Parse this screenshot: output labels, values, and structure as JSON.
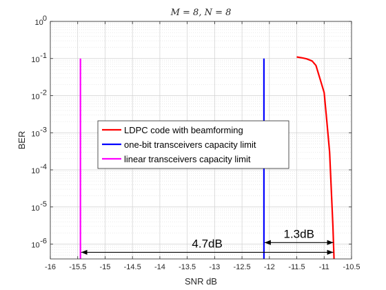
{
  "chart_data": {
    "type": "line",
    "title": "M = 8, N = 8",
    "xlabel": "SNR dB",
    "ylabel": "BER",
    "xlim": [
      -16,
      -10.5
    ],
    "ylim_exponent": [
      -6.4,
      0
    ],
    "yscale": "log",
    "grid": true,
    "minor_grid": true,
    "x_ticks": [
      -16,
      -15.5,
      -15,
      -14.5,
      -14,
      -13.5,
      -13,
      -12.5,
      -12,
      -11.5,
      -11,
      -10.5
    ],
    "x_tick_labels": [
      "-16",
      "-15.5",
      "-15",
      "-14.5",
      "-14",
      "-13.5",
      "-13",
      "-12.5",
      "-12",
      "-11.5",
      "-11",
      "-10.5"
    ],
    "y_tick_exponents": [
      0,
      -1,
      -2,
      -3,
      -4,
      -5,
      -6
    ],
    "y_tick_labels": [
      "0",
      "-1",
      "-2",
      "-3",
      "-4",
      "-5",
      "-6"
    ],
    "y_tick_base": "10",
    "legend_position": "center-left",
    "series": [
      {
        "name": "LDPC code with beamforming",
        "color": "#ff0000",
        "x": [
          -11.5,
          -11.4,
          -11.32,
          -11.22,
          -11.15,
          -11.08,
          -11.0,
          -10.95,
          -10.9,
          -10.87,
          -10.84,
          -10.82
        ],
        "y": [
          0.11,
          0.104,
          0.098,
          0.086,
          0.065,
          0.03,
          0.012,
          0.002,
          0.0003,
          3e-05,
          3e-06,
          4e-07
        ]
      },
      {
        "name": "one-bit transceivers capacity limit",
        "color": "#0000ff",
        "x": [
          -12.1,
          -12.1
        ],
        "y": [
          0.1,
          4e-07
        ]
      },
      {
        "name": "linear transceivers capacity limit",
        "color": "#ff00ff",
        "x": [
          -15.45,
          -15.45
        ],
        "y": [
          0.1,
          4e-07
        ]
      }
    ],
    "annotations": [
      {
        "text": "4.7dB",
        "from_x": -15.45,
        "to_x": -10.82,
        "y": 6e-07
      },
      {
        "text": "1.3dB",
        "from_x": -12.1,
        "to_x": -10.82,
        "y": 1.1e-06
      }
    ]
  }
}
